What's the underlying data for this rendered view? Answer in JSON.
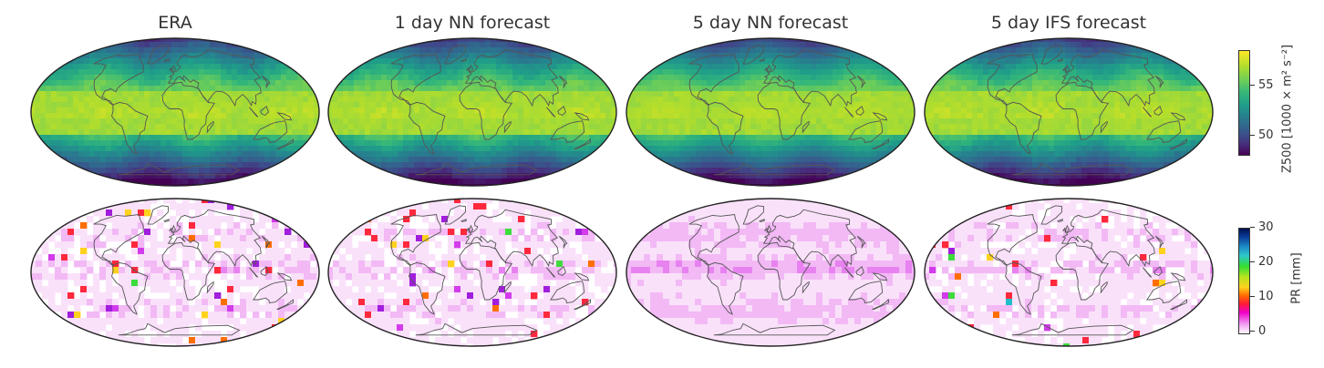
{
  "columns": [
    {
      "title": "ERA"
    },
    {
      "title": "1 day NN forecast"
    },
    {
      "title": "5 day NN forecast"
    },
    {
      "title": "5 day IFS forecast"
    }
  ],
  "rows": [
    {
      "variable": "Z500",
      "colorbar": {
        "label": "Z500 [1000 × m² s⁻²]",
        "ticks": [
          "55",
          "50"
        ],
        "colormap": "viridis"
      }
    },
    {
      "variable": "PR",
      "colorbar": {
        "label": "PR [mm]",
        "ticks": [
          "30",
          "20",
          "10",
          "0"
        ],
        "colormap": "gist_ncar_r"
      }
    }
  ],
  "colors": {
    "z500_low": "#3b0f54",
    "z500_mid": "#21908c",
    "z500_high": "#fde725",
    "pr_zero": "#ffffff",
    "pr_low": "#e040fb",
    "pr_mid": "#ff3300",
    "pr_high_green": "#33dd33",
    "pr_max": "#001a66",
    "coastline": "#555555"
  }
}
